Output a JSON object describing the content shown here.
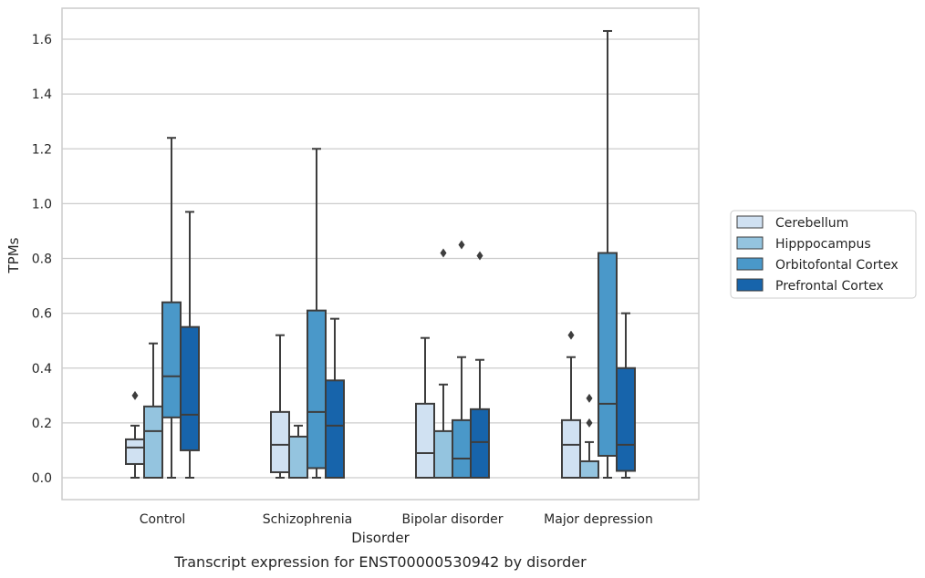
{
  "chart_data": {
    "type": "box",
    "caption": "Transcript expression for ENST00000530942 by disorder",
    "xlabel": "Disorder",
    "ylabel": "TPMs",
    "ylim": [
      -0.08,
      1.72
    ],
    "yticks": [
      0.0,
      0.2,
      0.4,
      0.6,
      0.8,
      1.0,
      1.2,
      1.4,
      1.6
    ],
    "ytick_labels": [
      "0.0",
      "0.2",
      "0.4",
      "0.6",
      "0.8",
      "1.0",
      "1.2",
      "1.4",
      "1.6"
    ],
    "grid": true,
    "legend_position": "right",
    "categories": [
      "Control",
      "Schizophrenia",
      "Bipolar disorder",
      "Major depression"
    ],
    "series": [
      {
        "name": "Cerebellum",
        "color": "#d0e1f2",
        "boxes": [
          {
            "whisker_low": 0.0,
            "q1": 0.05,
            "median": 0.11,
            "q3": 0.14,
            "whisker_high": 0.19,
            "outliers": [
              0.3
            ]
          },
          {
            "whisker_low": 0.0,
            "q1": 0.02,
            "median": 0.12,
            "q3": 0.24,
            "whisker_high": 0.52,
            "outliers": []
          },
          {
            "whisker_low": 0.0,
            "q1": 0.0,
            "median": 0.09,
            "q3": 0.27,
            "whisker_high": 0.51,
            "outliers": []
          },
          {
            "whisker_low": 0.0,
            "q1": 0.0,
            "median": 0.12,
            "q3": 0.21,
            "whisker_high": 0.44,
            "outliers": [
              0.52
            ]
          }
        ]
      },
      {
        "name": "Hipppocampus",
        "color": "#94c4df",
        "boxes": [
          {
            "whisker_low": 0.0,
            "q1": 0.0,
            "median": 0.17,
            "q3": 0.26,
            "whisker_high": 0.49,
            "outliers": []
          },
          {
            "whisker_low": 0.0,
            "q1": 0.0,
            "median": 0.0,
            "q3": 0.15,
            "whisker_high": 0.19,
            "outliers": []
          },
          {
            "whisker_low": 0.0,
            "q1": 0.0,
            "median": 0.0,
            "q3": 0.17,
            "whisker_high": 0.34,
            "outliers": [
              0.82
            ]
          },
          {
            "whisker_low": 0.0,
            "q1": 0.0,
            "median": 0.0,
            "q3": 0.06,
            "whisker_high": 0.13,
            "outliers": [
              0.2,
              0.29
            ]
          }
        ]
      },
      {
        "name": "Orbitofontal Cortex",
        "color": "#4a98c9",
        "boxes": [
          {
            "whisker_low": 0.0,
            "q1": 0.22,
            "median": 0.37,
            "q3": 0.64,
            "whisker_high": 1.24,
            "outliers": []
          },
          {
            "whisker_low": 0.0,
            "q1": 0.035,
            "median": 0.24,
            "q3": 0.61,
            "whisker_high": 1.2,
            "outliers": []
          },
          {
            "whisker_low": 0.0,
            "q1": 0.0,
            "median": 0.07,
            "q3": 0.21,
            "whisker_high": 0.44,
            "outliers": [
              0.85
            ]
          },
          {
            "whisker_low": 0.0,
            "q1": 0.08,
            "median": 0.27,
            "q3": 0.82,
            "whisker_high": 1.63,
            "outliers": []
          }
        ]
      },
      {
        "name": "Prefrontal Cortex",
        "color": "#1764ab",
        "boxes": [
          {
            "whisker_low": 0.0,
            "q1": 0.1,
            "median": 0.23,
            "q3": 0.55,
            "whisker_high": 0.97,
            "outliers": []
          },
          {
            "whisker_low": 0.0,
            "q1": 0.0,
            "median": 0.19,
            "q3": 0.355,
            "whisker_high": 0.58,
            "outliers": []
          },
          {
            "whisker_low": 0.0,
            "q1": 0.0,
            "median": 0.13,
            "q3": 0.25,
            "whisker_high": 0.43,
            "outliers": [
              0.81
            ]
          },
          {
            "whisker_low": 0.0,
            "q1": 0.025,
            "median": 0.12,
            "q3": 0.4,
            "whisker_high": 0.6,
            "outliers": []
          }
        ]
      }
    ]
  }
}
